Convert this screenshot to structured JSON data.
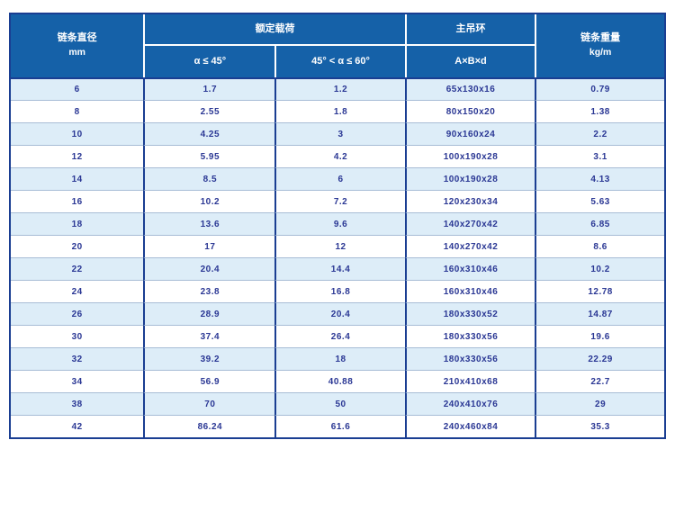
{
  "table": {
    "header": {
      "diameter": {
        "line1": "链条直径",
        "line2": "mm"
      },
      "rated_load_group": "额定载荷",
      "angle_le_45": "α ≤ 45°",
      "angle_45_to_60": "45° < α ≤ 60°",
      "main_ring_group": "主吊环",
      "ring_dims": "A×B×d",
      "weight": {
        "line1": "链条重量",
        "line2": "kg/m"
      }
    },
    "rows": [
      [
        "6",
        "1.7",
        "1.2",
        "65x130x16",
        "0.79"
      ],
      [
        "8",
        "2.55",
        "1.8",
        "80x150x20",
        "1.38"
      ],
      [
        "10",
        "4.25",
        "3",
        "90x160x24",
        "2.2"
      ],
      [
        "12",
        "5.95",
        "4.2",
        "100x190x28",
        "3.1"
      ],
      [
        "14",
        "8.5",
        "6",
        "100x190x28",
        "4.13"
      ],
      [
        "16",
        "10.2",
        "7.2",
        "120x230x34",
        "5.63"
      ],
      [
        "18",
        "13.6",
        "9.6",
        "140x270x42",
        "6.85"
      ],
      [
        "20",
        "17",
        "12",
        "140x270x42",
        "8.6"
      ],
      [
        "22",
        "20.4",
        "14.4",
        "160x310x46",
        "10.2"
      ],
      [
        "24",
        "23.8",
        "16.8",
        "160x310x46",
        "12.78"
      ],
      [
        "26",
        "28.9",
        "20.4",
        "180x330x52",
        "14.87"
      ],
      [
        "30",
        "37.4",
        "26.4",
        "180x330x56",
        "19.6"
      ],
      [
        "32",
        "39.2",
        "18",
        "180x330x56",
        "22.29"
      ],
      [
        "34",
        "56.9",
        "40.88",
        "210x410x68",
        "22.7"
      ],
      [
        "38",
        "70",
        "50",
        "240x410x76",
        "29"
      ],
      [
        "42",
        "86.24",
        "61.6",
        "240x460x84",
        "35.3"
      ]
    ],
    "colors": {
      "header_background": "#1561a8",
      "header_text": "#ffffff",
      "outer_and_column_border": "#1a3e92",
      "row_separator": "#a8bdd6",
      "striped_row_background": "#ddedf8",
      "data_text": "#2a3794",
      "header_divider": "#ffffff"
    }
  }
}
